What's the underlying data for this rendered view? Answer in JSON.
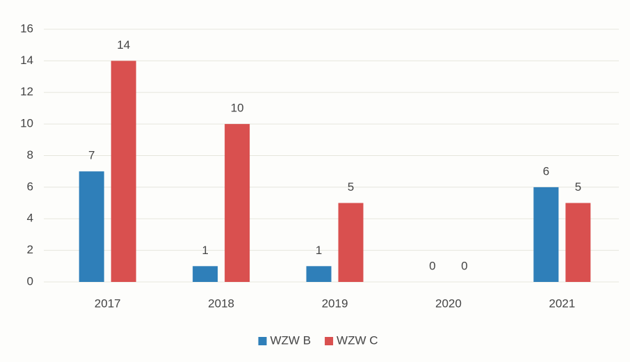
{
  "chart_data": {
    "type": "bar",
    "categories": [
      "2017",
      "2018",
      "2019",
      "2020",
      "2021"
    ],
    "series": [
      {
        "name": "WZW B",
        "color": "#2f7fb9",
        "values": [
          7,
          1,
          1,
          0,
          6
        ]
      },
      {
        "name": "WZW C",
        "color": "#d9504f",
        "values": [
          14,
          10,
          5,
          0,
          5
        ]
      }
    ],
    "ylim": [
      0,
      16
    ],
    "yticks": [
      0,
      2,
      4,
      6,
      8,
      10,
      12,
      14,
      16
    ],
    "grid": true,
    "legend": "bottom"
  }
}
